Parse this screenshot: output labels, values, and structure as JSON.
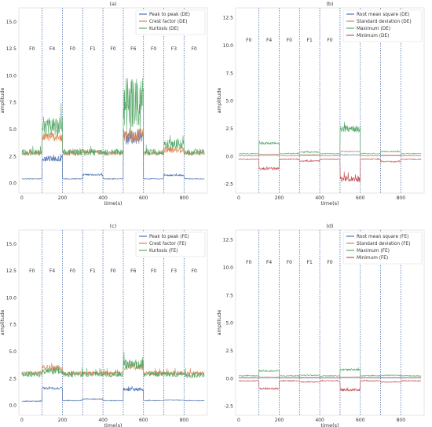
{
  "figure": {
    "state_label_names": [
      "F0",
      "F4",
      "F0",
      "F1",
      "F0",
      "F6",
      "F0",
      "F3",
      "F0"
    ],
    "boundaries": [
      100,
      200,
      300,
      400,
      500,
      600,
      700,
      800
    ]
  },
  "chart_data": [
    {
      "type": "line",
      "panel": "(a)",
      "title": "(a)",
      "xlabel": "time(s)",
      "ylabel": "amplitude",
      "xlim": [
        -15,
        915
      ],
      "ylim": [
        -0.9,
        16.3
      ],
      "xticks": [
        0,
        200,
        400,
        600,
        800
      ],
      "yticks": [
        0.0,
        2.5,
        5.0,
        7.5,
        10.0,
        12.5,
        15.0
      ],
      "legend_position": "top-right",
      "state_label_y": 12.5,
      "grid": false,
      "series": [
        {
          "name": "Peak to peak (DE)",
          "color": "#4c72b0",
          "levels": [
            0.42,
            2.3,
            0.42,
            0.8,
            0.42,
            4.2,
            0.42,
            0.75,
            0.42
          ],
          "noise": [
            0.04,
            0.25,
            0.04,
            0.08,
            0.04,
            0.6,
            0.04,
            0.08,
            0.04
          ]
        },
        {
          "name": "Crest factor (DE)",
          "color": "#dd8452",
          "levels": [
            2.8,
            4.3,
            2.8,
            2.9,
            2.8,
            4.5,
            2.8,
            3.1,
            2.8
          ],
          "noise": [
            0.2,
            0.4,
            0.2,
            0.2,
            0.2,
            0.6,
            0.2,
            0.3,
            0.2
          ]
        },
        {
          "name": "Kurtosis (DE)",
          "color": "#55a868",
          "levels": [
            2.9,
            5.3,
            2.9,
            2.9,
            2.9,
            7.2,
            2.9,
            3.7,
            2.9
          ],
          "noise": [
            0.3,
            0.9,
            0.3,
            0.3,
            0.3,
            2.6,
            0.3,
            0.5,
            0.3
          ]
        }
      ]
    },
    {
      "type": "line",
      "panel": "(b)",
      "title": "(b)",
      "xlabel": "time(s)",
      "ylabel": "amplitude",
      "xlim": [
        -15,
        915
      ],
      "ylim": [
        -3.3,
        13.4
      ],
      "xticks": [
        0,
        200,
        400,
        600,
        800
      ],
      "yticks": [
        -2.5,
        0.0,
        2.5,
        5.0,
        7.5,
        10.0,
        12.5
      ],
      "legend_position": "top-right",
      "state_label_y": 10.5,
      "grid": false,
      "series": [
        {
          "name": "Root mean square (DE)",
          "color": "#4c72b0",
          "levels": [
            0.07,
            0.1,
            0.07,
            0.1,
            0.07,
            0.15,
            0.07,
            0.08,
            0.07
          ],
          "noise": [
            0.01,
            0.02,
            0.01,
            0.01,
            0.01,
            0.03,
            0.01,
            0.01,
            0.01
          ]
        },
        {
          "name": "Standard deviation (DE)",
          "color": "#dd8452",
          "levels": [
            0.07,
            0.2,
            0.07,
            0.15,
            0.07,
            0.45,
            0.07,
            0.12,
            0.07
          ],
          "noise": [
            0.01,
            0.02,
            0.01,
            0.02,
            0.01,
            0.05,
            0.01,
            0.01,
            0.01
          ]
        },
        {
          "name": "Maximum (DE)",
          "color": "#55a868",
          "levels": [
            0.25,
            1.2,
            0.25,
            0.4,
            0.25,
            2.5,
            0.25,
            0.45,
            0.25
          ],
          "noise": [
            0.04,
            0.12,
            0.04,
            0.06,
            0.04,
            0.3,
            0.04,
            0.06,
            0.04
          ]
        },
        {
          "name": "Minimum (DE)",
          "color": "#c44e52",
          "levels": [
            -0.25,
            -1.1,
            -0.25,
            -0.4,
            -0.25,
            -2.0,
            -0.25,
            -0.45,
            -0.25
          ],
          "noise": [
            0.04,
            0.12,
            0.04,
            0.06,
            0.04,
            0.3,
            0.04,
            0.06,
            0.04
          ]
        }
      ]
    },
    {
      "type": "line",
      "panel": "(c)",
      "title": "(c)",
      "xlabel": "time(s)",
      "ylabel": "amplitude",
      "xlim": [
        -15,
        915
      ],
      "ylim": [
        -0.9,
        16.3
      ],
      "xticks": [
        0,
        200,
        400,
        600,
        800
      ],
      "yticks": [
        0.0,
        2.5,
        5.0,
        7.5,
        10.0,
        12.5,
        15.0
      ],
      "legend_position": "top-right",
      "state_label_y": 12.5,
      "grid": false,
      "series": [
        {
          "name": "Peak to peak (FE)",
          "color": "#4c72b0",
          "levels": [
            0.4,
            1.6,
            0.45,
            0.6,
            0.45,
            1.5,
            0.45,
            0.5,
            0.45
          ],
          "noise": [
            0.04,
            0.12,
            0.04,
            0.05,
            0.04,
            0.15,
            0.04,
            0.04,
            0.04
          ]
        },
        {
          "name": "Crest factor (FE)",
          "color": "#dd8452",
          "levels": [
            3.0,
            3.5,
            3.0,
            3.0,
            3.0,
            3.6,
            3.0,
            3.0,
            3.0
          ],
          "noise": [
            0.2,
            0.25,
            0.2,
            0.2,
            0.2,
            0.3,
            0.2,
            0.2,
            0.2
          ]
        },
        {
          "name": "Kurtosis (FE)",
          "color": "#55a868",
          "levels": [
            2.9,
            3.2,
            2.9,
            2.9,
            2.9,
            3.8,
            2.9,
            2.9,
            2.8
          ],
          "noise": [
            0.25,
            0.3,
            0.25,
            0.25,
            0.25,
            0.5,
            0.25,
            0.25,
            0.25
          ]
        }
      ]
    },
    {
      "type": "line",
      "panel": "(d)",
      "title": "(d)",
      "xlabel": "time(s)",
      "ylabel": "amplitude",
      "xlim": [
        -15,
        915
      ],
      "ylim": [
        -3.3,
        13.4
      ],
      "xticks": [
        0,
        200,
        400,
        600,
        800
      ],
      "yticks": [
        -2.5,
        0.0,
        2.5,
        5.0,
        7.5,
        10.0,
        12.5
      ],
      "legend_position": "top-right",
      "state_label_y": 10.5,
      "grid": false,
      "series": [
        {
          "name": "Root mean square (FE)",
          "color": "#4c72b0",
          "levels": [
            0.05,
            0.08,
            0.05,
            0.06,
            0.05,
            0.09,
            0.05,
            0.06,
            0.05
          ],
          "noise": [
            0.01,
            0.01,
            0.01,
            0.01,
            0.01,
            0.01,
            0.01,
            0.01,
            0.01
          ]
        },
        {
          "name": "Standard deviation (FE)",
          "color": "#dd8452",
          "levels": [
            0.1,
            0.15,
            0.1,
            0.12,
            0.1,
            0.15,
            0.1,
            0.11,
            0.1
          ],
          "noise": [
            0.01,
            0.02,
            0.01,
            0.01,
            0.01,
            0.02,
            0.01,
            0.01,
            0.01
          ]
        },
        {
          "name": "Maximum (FE)",
          "color": "#55a868",
          "levels": [
            0.25,
            0.7,
            0.25,
            0.3,
            0.25,
            0.8,
            0.25,
            0.3,
            0.25
          ],
          "noise": [
            0.04,
            0.08,
            0.04,
            0.05,
            0.04,
            0.1,
            0.04,
            0.05,
            0.04
          ]
        },
        {
          "name": "Minimum (FE)",
          "color": "#c44e52",
          "levels": [
            -0.2,
            -0.9,
            -0.2,
            -0.3,
            -0.2,
            -1.0,
            -0.2,
            -0.3,
            -0.2
          ],
          "noise": [
            0.04,
            0.08,
            0.04,
            0.05,
            0.04,
            0.12,
            0.04,
            0.05,
            0.04
          ]
        }
      ]
    }
  ]
}
